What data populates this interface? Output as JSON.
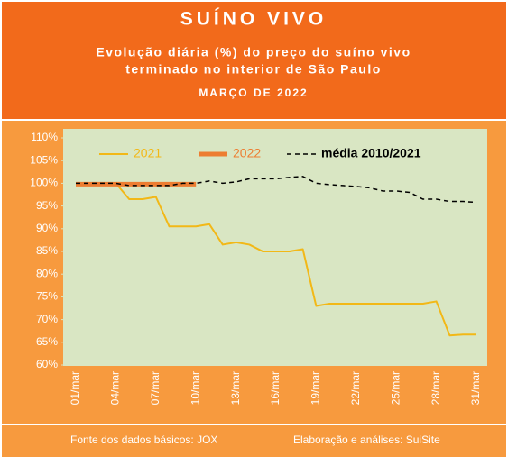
{
  "chart_data": {
    "type": "line",
    "title": "SUÍNO VIVO",
    "subtitle": [
      "Evolução diária (%) do preço do suíno vivo",
      "terminado no interior de São Paulo"
    ],
    "period": "MARÇO DE 2022",
    "source": "Fonte dos dados básicos: JOX",
    "credit": "Elaboração e análises: SuiSite",
    "categories": [
      "01/mar",
      null,
      null,
      "04/mar",
      null,
      null,
      "07/mar",
      null,
      null,
      "10/mar",
      null,
      null,
      "13/mar",
      null,
      null,
      "16/mar",
      null,
      null,
      "19/mar",
      null,
      null,
      "22/mar",
      null,
      null,
      "25/mar",
      null,
      null,
      "28/mar",
      null,
      null,
      "31/mar"
    ],
    "ylim": [
      60,
      110
    ],
    "yticks": [
      {
        "value": 60,
        "label": "60%"
      },
      {
        "value": 65,
        "label": "65%"
      },
      {
        "value": 70,
        "label": "70%"
      },
      {
        "value": 75,
        "label": "75%"
      },
      {
        "value": 80,
        "label": "80%"
      },
      {
        "value": 85,
        "label": "85%"
      },
      {
        "value": 90,
        "label": "90%"
      },
      {
        "value": 95,
        "label": "95%"
      },
      {
        "value": 100,
        "label": "100%"
      },
      {
        "value": 105,
        "label": "105%"
      },
      {
        "value": 110,
        "label": "110%"
      }
    ],
    "grid": false,
    "series": [
      {
        "name": "2021",
        "color": "#f2b817",
        "width": 2,
        "dashed": false,
        "values": [
          100,
          100,
          100,
          100,
          96.5,
          96.5,
          97,
          90.5,
          90.5,
          90.5,
          91,
          86.5,
          87,
          86.5,
          85,
          85,
          85,
          85.5,
          73,
          73.5,
          73.5,
          73.5,
          73.5,
          73.5,
          73.5,
          73.5,
          73.5,
          74,
          66.5,
          66.7,
          66.7
        ]
      },
      {
        "name": "2022",
        "color": "#ed7d31",
        "width": 5,
        "dashed": false,
        "values": [
          99.8,
          99.8,
          99.8,
          99.8,
          99.8,
          99.8,
          99.8,
          99.8,
          99.8,
          99.8,
          null,
          null,
          null,
          null,
          null,
          null,
          null,
          null,
          null,
          null,
          null,
          null,
          null,
          null,
          null,
          null,
          null,
          null,
          null,
          null,
          null
        ]
      },
      {
        "name": "média 2010/2021",
        "color": "#000000",
        "width": 1.5,
        "dashed": true,
        "values": [
          100,
          100,
          100,
          100,
          99.5,
          99.5,
          99.5,
          99.5,
          100,
          100,
          100.5,
          100,
          100.3,
          101,
          101,
          101,
          101.3,
          101.5,
          100,
          99.7,
          99.5,
          99.3,
          99,
          98.3,
          98.3,
          98,
          96.5,
          96.5,
          96,
          96,
          95.8
        ]
      }
    ]
  }
}
